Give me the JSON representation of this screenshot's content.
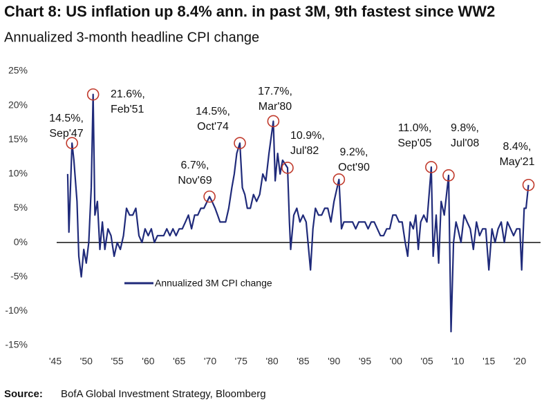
{
  "chart_data": {
    "type": "line",
    "title": "Chart 8: US inflation up 8.4% ann. in past 3M, 9th fastest since WW2",
    "subtitle": "Annualized 3-month headline CPI change",
    "source_label": "Source:",
    "source": "BofA Global Investment Strategy, Bloomberg",
    "xlim": [
      1945,
      2022
    ],
    "xticks": [
      {
        "value": 1945,
        "label": "'45"
      },
      {
        "value": 1950,
        "label": "'50"
      },
      {
        "value": 1955,
        "label": "'55"
      },
      {
        "value": 1960,
        "label": "'60"
      },
      {
        "value": 1965,
        "label": "'65"
      },
      {
        "value": 1970,
        "label": "'70"
      },
      {
        "value": 1975,
        "label": "'75"
      },
      {
        "value": 1980,
        "label": "'80"
      },
      {
        "value": 1985,
        "label": "'85"
      },
      {
        "value": 1990,
        "label": "'90"
      },
      {
        "value": 1995,
        "label": "'95"
      },
      {
        "value": 2000,
        "label": "'00"
      },
      {
        "value": 2005,
        "label": "'05"
      },
      {
        "value": 2010,
        "label": "'10"
      },
      {
        "value": 2015,
        "label": "'15"
      },
      {
        "value": 2020,
        "label": "'20"
      }
    ],
    "ylim": [
      -15,
      25
    ],
    "yticks": [
      {
        "value": 25,
        "label": "25%"
      },
      {
        "value": 20,
        "label": "20%"
      },
      {
        "value": 15,
        "label": "15%"
      },
      {
        "value": 10,
        "label": "10%"
      },
      {
        "value": 5,
        "label": "5%"
      },
      {
        "value": 0,
        "label": "0%"
      },
      {
        "value": -5,
        "label": "-5%"
      },
      {
        "value": -10,
        "label": "-10%"
      },
      {
        "value": -15,
        "label": "-15%"
      }
    ],
    "legend": "bottom-left",
    "series": [
      {
        "name": "Annualized 3M CPI change",
        "color": "#1f2a7a",
        "x": [
          1947.0,
          1947.2,
          1947.7,
          1948.0,
          1948.5,
          1948.8,
          1949.2,
          1949.6,
          1950.0,
          1950.4,
          1950.8,
          1951.1,
          1951.4,
          1951.8,
          1952.2,
          1952.6,
          1953.0,
          1953.5,
          1954.0,
          1954.5,
          1955.0,
          1955.5,
          1956.0,
          1956.5,
          1957.0,
          1957.5,
          1958.0,
          1958.5,
          1959.0,
          1959.5,
          1960.0,
          1960.5,
          1961.0,
          1961.5,
          1962.0,
          1962.5,
          1963.0,
          1963.5,
          1964.0,
          1964.5,
          1965.0,
          1965.5,
          1966.0,
          1966.5,
          1967.0,
          1967.5,
          1968.0,
          1968.5,
          1969.0,
          1969.9,
          1970.3,
          1970.8,
          1971.2,
          1971.6,
          1972.0,
          1972.5,
          1973.0,
          1973.5,
          1973.9,
          1974.3,
          1974.8,
          1975.2,
          1975.6,
          1976.0,
          1976.5,
          1977.0,
          1977.5,
          1978.0,
          1978.5,
          1979.0,
          1979.5,
          1980.2,
          1980.5,
          1980.9,
          1981.3,
          1981.7,
          1982.5,
          1982.8,
          1983.0,
          1983.5,
          1984.0,
          1984.5,
          1985.0,
          1985.5,
          1986.2,
          1986.6,
          1987.0,
          1987.5,
          1988.0,
          1988.5,
          1989.0,
          1989.5,
          1990.0,
          1990.8,
          1991.2,
          1991.6,
          1992.0,
          1992.5,
          1993.0,
          1993.5,
          1994.0,
          1994.5,
          1995.0,
          1995.5,
          1996.0,
          1996.5,
          1997.0,
          1997.5,
          1998.0,
          1998.5,
          1999.0,
          1999.5,
          2000.0,
          2000.5,
          2001.0,
          2001.5,
          2001.9,
          2002.3,
          2002.8,
          2003.2,
          2003.6,
          2004.0,
          2004.5,
          2005.0,
          2005.7,
          2006.0,
          2006.5,
          2006.9,
          2007.3,
          2007.8,
          2008.5,
          2008.9,
          2009.3,
          2009.7,
          2010.0,
          2010.5,
          2011.0,
          2011.5,
          2012.0,
          2012.5,
          2013.0,
          2013.5,
          2014.0,
          2014.5,
          2015.0,
          2015.5,
          2016.0,
          2016.5,
          2017.0,
          2017.5,
          2018.0,
          2018.5,
          2019.0,
          2019.5,
          2020.0,
          2020.3,
          2020.7,
          2021.0,
          2021.4
        ],
        "values": [
          10,
          1.5,
          14.5,
          12,
          6,
          -2,
          -5,
          -1,
          -3,
          0,
          8,
          21.6,
          4,
          6,
          -1,
          3,
          -1,
          2,
          1,
          -2,
          0,
          -1,
          1,
          5,
          4,
          4,
          5,
          1,
          0,
          2,
          1,
          2,
          0,
          1,
          1,
          1,
          2,
          1,
          2,
          1,
          2,
          2,
          3,
          4,
          2,
          4,
          4,
          5,
          5,
          6.7,
          6,
          5,
          4,
          3,
          3,
          3,
          5,
          8,
          10,
          13,
          14.5,
          8,
          7,
          5,
          5,
          7,
          6,
          7,
          10,
          9,
          13,
          17.7,
          9,
          13,
          10,
          12,
          10.9,
          3,
          -1,
          4,
          5,
          3,
          4,
          3,
          -4,
          2,
          5,
          4,
          4,
          5,
          5,
          3,
          6,
          9.2,
          2,
          3,
          3,
          3,
          3,
          2,
          3,
          3,
          3,
          2,
          3,
          3,
          2,
          1,
          1,
          2,
          2,
          4,
          4,
          3,
          3,
          0,
          -2,
          3,
          2,
          4,
          -1,
          3,
          4,
          3,
          11.0,
          -2,
          4,
          -3,
          6,
          4,
          9.8,
          -13,
          0,
          3,
          2,
          0,
          4,
          3,
          2,
          -1,
          3,
          1,
          2,
          2,
          -4,
          2,
          0,
          2,
          3,
          0,
          3,
          2,
          1,
          2,
          2,
          -4,
          5,
          5,
          8.4
        ]
      }
    ],
    "annotations": [
      {
        "text": [
          "14.5%,",
          "Sep'47"
        ],
        "x": 1947.7,
        "y": 14.5
      },
      {
        "text": [
          "21.6%,",
          "Feb'51"
        ],
        "x": 1951.1,
        "y": 21.6
      },
      {
        "text": [
          "6.7%,",
          "Nov'69"
        ],
        "x": 1969.9,
        "y": 6.7
      },
      {
        "text": [
          "14.5%,",
          "Oct'74"
        ],
        "x": 1974.8,
        "y": 14.5
      },
      {
        "text": [
          "17.7%,",
          "Mar'80"
        ],
        "x": 1980.2,
        "y": 17.7
      },
      {
        "text": [
          "10.9%,",
          "Jul'82"
        ],
        "x": 1982.5,
        "y": 10.9
      },
      {
        "text": [
          "9.2%,",
          "Oct'90"
        ],
        "x": 1990.8,
        "y": 9.2
      },
      {
        "text": [
          "11.0%,",
          "Sep'05"
        ],
        "x": 2005.7,
        "y": 11.0
      },
      {
        "text": [
          "9.8%,",
          "Jul'08"
        ],
        "x": 2008.5,
        "y": 9.8
      },
      {
        "text": [
          "8.4%,",
          "May'21"
        ],
        "x": 2021.4,
        "y": 8.4
      }
    ]
  }
}
